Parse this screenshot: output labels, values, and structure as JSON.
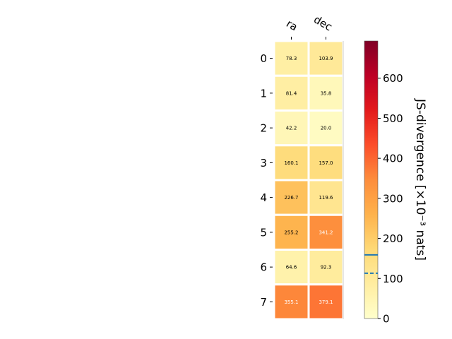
{
  "chart_data": {
    "type": "heatmap",
    "x_categories": [
      "ra",
      "dec"
    ],
    "y_categories": [
      "0",
      "1",
      "2",
      "3",
      "4",
      "5",
      "6",
      "7"
    ],
    "values": [
      [
        78.3,
        103.9
      ],
      [
        81.4,
        35.8
      ],
      [
        42.2,
        20.0
      ],
      [
        160.1,
        157.0
      ],
      [
        226.7,
        119.6
      ],
      [
        255.2,
        341.2
      ],
      [
        64.6,
        92.3
      ],
      [
        355.1,
        379.1
      ]
    ],
    "value_labels": [
      [
        "78.3",
        "103.9"
      ],
      [
        "81.4",
        "35.8"
      ],
      [
        "42.2",
        "20.0"
      ],
      [
        "160.1",
        "157.0"
      ],
      [
        "226.7",
        "119.6"
      ],
      [
        "255.2",
        "341.2"
      ],
      [
        "64.6",
        "92.3"
      ],
      [
        "355.1",
        "379.1"
      ]
    ],
    "colorbar": {
      "label": "JS-divergence [×10⁻³ nats]",
      "range": [
        0,
        693
      ],
      "ticks": [
        0,
        100,
        200,
        300,
        400,
        500,
        600
      ],
      "colormap": "YlOrRd",
      "markers": [
        {
          "value": 159,
          "style": "solid",
          "color": "#1f77b4"
        },
        {
          "value": 113,
          "style": "dashed",
          "color": "#1f77b4"
        }
      ]
    }
  }
}
